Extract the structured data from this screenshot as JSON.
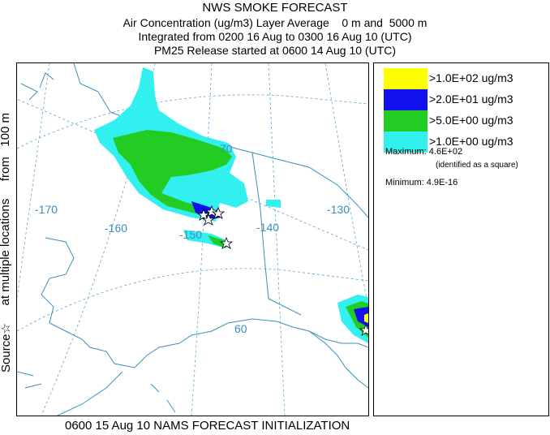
{
  "header": {
    "title": "NWS SMOKE FORECAST",
    "line1": "Air Concentration (ug/m3) Layer Average    0 m and  5000 m",
    "line2": "Integrated from 0200 16 Aug to 0300 16 Aug 10 (UTC)",
    "line3": "PM25 Release started at 0600 14 Aug 10 (UTC)"
  },
  "side_label": {
    "part1": "Source☆",
    "part2": "at multiple locations",
    "part3": "from   100 m"
  },
  "map": {
    "lon_labels": [
      "-170",
      "-160",
      "-150",
      "-140",
      "-130"
    ],
    "lat_labels": [
      "60",
      "70"
    ],
    "colors": {
      "map_lines": "#3c8fc0",
      "grid": "#5aa7d2",
      "conc_1": "#33f0f0",
      "conc_5": "#22cc22",
      "conc_20": "#1111ee",
      "conc_100": "#ffff00"
    }
  },
  "legend": {
    "items": [
      {
        "color": "#ffff00",
        "label": ">1.0E+02 ug/m3"
      },
      {
        "color": "#1111ee",
        "label": ">2.0E+01 ug/m3"
      },
      {
        "color": "#22cc22",
        "label": ">5.0E+00 ug/m3"
      },
      {
        "color": "#33f0f0",
        "label": ">1.0E+00 ug/m3"
      }
    ],
    "maximum": "Maximum: 4.6E+02",
    "maximum_note": "(identified as a square)",
    "minimum": "Minimum: 4.9E-16"
  },
  "footer": "0600 15 Aug 10 NAMS FORECAST INITIALIZATION"
}
